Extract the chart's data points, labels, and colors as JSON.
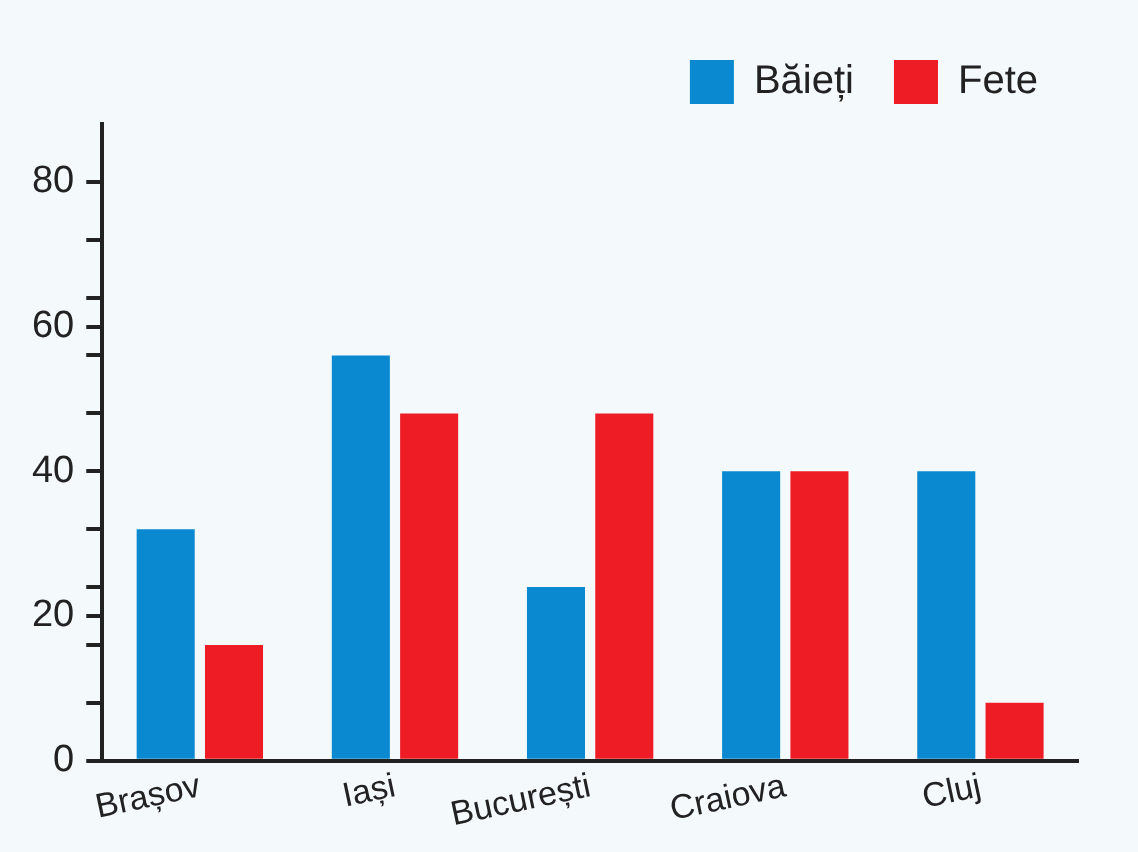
{
  "chart_data": {
    "type": "bar",
    "categories": [
      "Brașov",
      "Iași",
      "București",
      "Craiova",
      "Cluj"
    ],
    "series": [
      {
        "name": "Băieți",
        "color": "#0a88d0",
        "values": [
          32,
          56,
          24,
          40,
          40
        ]
      },
      {
        "name": "Fete",
        "color": "#ee1c25",
        "values": [
          16,
          48,
          48,
          40,
          8
        ]
      }
    ],
    "ylim": [
      0,
      88
    ],
    "yticks": [
      0,
      {
        "value": 8,
        "label": null
      },
      {
        "value": 16,
        "label": null
      },
      20,
      {
        "value": 24,
        "label": null
      },
      {
        "value": 32,
        "label": null
      },
      40,
      {
        "value": 48,
        "label": null
      },
      {
        "value": 56,
        "label": null
      },
      60,
      {
        "value": 64,
        "label": null
      },
      {
        "value": 72,
        "label": null
      },
      80
    ],
    "grid": false,
    "legend": "top"
  }
}
